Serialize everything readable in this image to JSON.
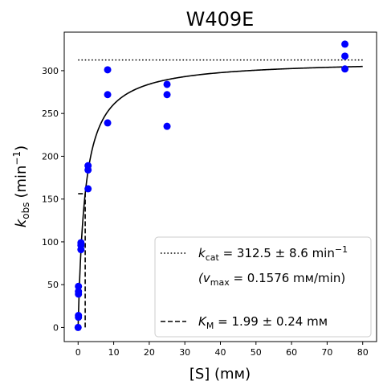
{
  "chart_data": {
    "type": "scatter",
    "title": "W409E",
    "xlabel": "[S] (mм)",
    "ylabel": {
      "main": "k",
      "sub": "obs",
      "unit": "(min",
      "sup": "−1",
      "close": ")"
    },
    "xlim": [
      -3.9,
      83.9
    ],
    "ylim": [
      -16.5,
      345
    ],
    "xticks": [
      0,
      10,
      20,
      30,
      40,
      50,
      60,
      70,
      80
    ],
    "yticks": [
      0,
      50,
      100,
      150,
      200,
      250,
      300
    ],
    "grid": false,
    "legend_position": "lower-right",
    "marker_color": "#0000ff",
    "curve_color": "#000000",
    "points": [
      {
        "x": 0,
        "y": 0
      },
      {
        "x": 0.1,
        "y": 12
      },
      {
        "x": 0.1,
        "y": 14
      },
      {
        "x": 0.1,
        "y": 39
      },
      {
        "x": 0.1,
        "y": 42
      },
      {
        "x": 0.1,
        "y": 48
      },
      {
        "x": 0.8,
        "y": 91
      },
      {
        "x": 0.8,
        "y": 96
      },
      {
        "x": 0.8,
        "y": 99
      },
      {
        "x": 2.8,
        "y": 162
      },
      {
        "x": 2.8,
        "y": 184
      },
      {
        "x": 2.8,
        "y": 189
      },
      {
        "x": 8.3,
        "y": 239
      },
      {
        "x": 8.3,
        "y": 272
      },
      {
        "x": 8.3,
        "y": 301
      },
      {
        "x": 25,
        "y": 235
      },
      {
        "x": 25,
        "y": 272
      },
      {
        "x": 25,
        "y": 284
      },
      {
        "x": 75,
        "y": 302
      },
      {
        "x": 75,
        "y": 317
      },
      {
        "x": 75,
        "y": 331
      }
    ],
    "fit": {
      "model": "michaelis-menten",
      "kcat": 312.5,
      "KM": 1.99,
      "x_range": [
        0,
        80
      ]
    },
    "kcat_line": {
      "y": 312.5,
      "x_range": [
        0,
        80
      ],
      "style": "dotted"
    },
    "km_marker": {
      "x": 1.99,
      "y_top": 156.25,
      "style": "dashed"
    },
    "legend": {
      "kcat_label": "k",
      "kcat_sub": "cat",
      "kcat_text": " = 312.5 ± 8.6 min",
      "kcat_sup": "−1",
      "vmax_text_open": "(v",
      "vmax_sub": "max",
      "vmax_text": " = 0.1576 mм/min)",
      "km_label": "K",
      "km_sub": "M",
      "km_text": " = 1.99 ± 0.24 mм"
    }
  }
}
